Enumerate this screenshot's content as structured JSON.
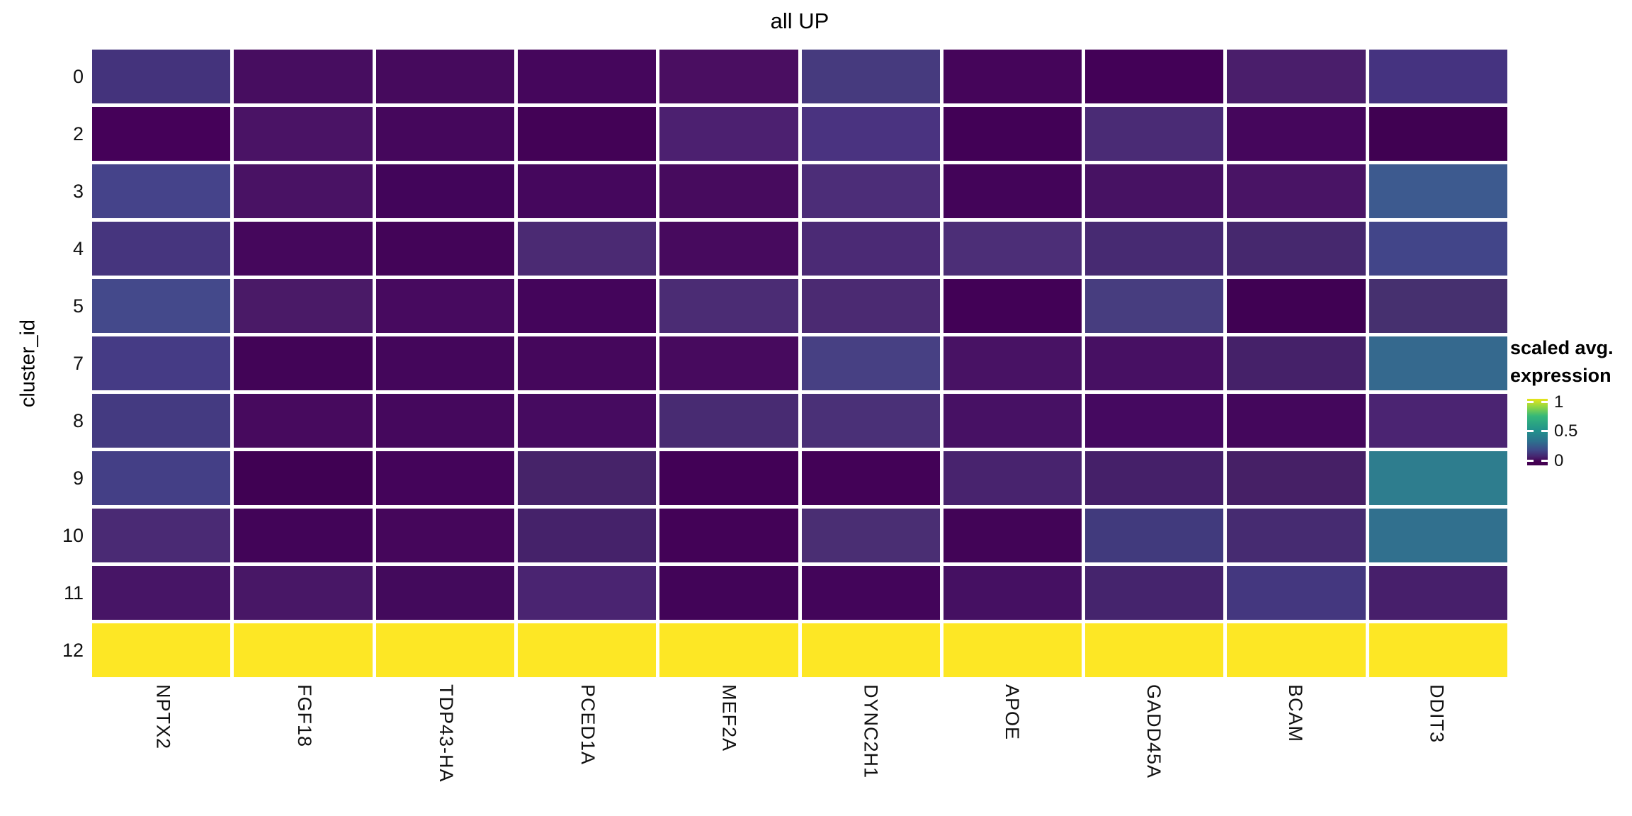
{
  "title": "all UP",
  "y_axis": {
    "title": "cluster_id",
    "tick_labels": [
      "0",
      "2",
      "3",
      "4",
      "5",
      "7",
      "8",
      "9",
      "10",
      "11",
      "12"
    ]
  },
  "x_axis": {
    "tick_labels": [
      "NPTX2",
      "FGF18",
      "TDP43-HA",
      "PCED1A",
      "MEF2A",
      "DYNC2H1",
      "APOE",
      "GADD45A",
      "BCAM",
      "DDIT3"
    ]
  },
  "legend": {
    "title_line1": "scaled avg.",
    "title_line2": "expression",
    "tick_labels": [
      "1",
      "0.5",
      "0"
    ],
    "colormap": "viridis",
    "top_color": "#e8e419",
    "mid_color": "#21918c",
    "bottom_color": "#440154"
  },
  "chart_data": {
    "type": "heatmap",
    "title": "all UP",
    "xlabel": "",
    "ylabel": "cluster_id",
    "columns": [
      "NPTX2",
      "FGF18",
      "TDP43-HA",
      "PCED1A",
      "MEF2A",
      "DYNC2H1",
      "APOE",
      "GADD45A",
      "BCAM",
      "DDIT3"
    ],
    "rows": [
      0,
      2,
      3,
      4,
      5,
      7,
      8,
      9,
      10,
      11,
      12
    ],
    "legend_title": "scaled avg. expression",
    "color_scale": {
      "name": "viridis",
      "domain": [
        0,
        1
      ],
      "legend_ticks": [
        1,
        0.5,
        0
      ]
    },
    "values": [
      [
        0.15,
        0.04,
        0.03,
        0.02,
        0.04,
        0.17,
        0.02,
        0.01,
        0.09,
        0.16
      ],
      [
        0.01,
        0.07,
        0.02,
        0.01,
        0.1,
        0.15,
        0.0,
        0.13,
        0.02,
        0.0
      ],
      [
        0.2,
        0.06,
        0.02,
        0.03,
        0.04,
        0.13,
        0.02,
        0.06,
        0.07,
        0.27
      ],
      [
        0.16,
        0.02,
        0.01,
        0.12,
        0.03,
        0.12,
        0.14,
        0.12,
        0.11,
        0.2
      ],
      [
        0.21,
        0.08,
        0.03,
        0.02,
        0.13,
        0.12,
        0.0,
        0.18,
        0.0,
        0.14
      ],
      [
        0.18,
        0.01,
        0.02,
        0.03,
        0.03,
        0.19,
        0.06,
        0.05,
        0.1,
        0.32
      ],
      [
        0.17,
        0.03,
        0.03,
        0.04,
        0.12,
        0.14,
        0.06,
        0.04,
        0.03,
        0.11
      ],
      [
        0.19,
        0.0,
        0.01,
        0.1,
        0.0,
        0.01,
        0.1,
        0.09,
        0.09,
        0.42
      ],
      [
        0.12,
        0.01,
        0.02,
        0.1,
        0.01,
        0.13,
        0.01,
        0.17,
        0.12,
        0.37
      ],
      [
        0.07,
        0.08,
        0.04,
        0.11,
        0.01,
        0.02,
        0.06,
        0.11,
        0.16,
        0.09
      ],
      [
        1.0,
        1.0,
        1.0,
        1.0,
        1.0,
        1.0,
        1.0,
        1.0,
        1.0,
        1.0
      ]
    ],
    "cell_colors": [
      [
        "#44337c",
        "#470d60",
        "#460a5d",
        "#45065c",
        "#4a0e61",
        "#463a7e",
        "#45055a",
        "#430157",
        "#4a1e6b",
        "#453380"
      ],
      [
        "#450159",
        "#4a1365",
        "#45075c",
        "#430256",
        "#4c2070",
        "#4a3380",
        "#420156",
        "#4a2b75",
        "#45065c",
        "#400152"
      ],
      [
        "#45438a",
        "#491264",
        "#42055a",
        "#45075d",
        "#470b5e",
        "#4c2d78",
        "#430459",
        "#471263",
        "#491465",
        "#3d5a8f"
      ],
      [
        "#46357e",
        "#45075c",
        "#430458",
        "#4b2a73",
        "#470a5e",
        "#4b2a75",
        "#4c2e77",
        "#472a72",
        "#46286e",
        "#424589"
      ],
      [
        "#44498b",
        "#4a1a67",
        "#470a5f",
        "#44055b",
        "#4b2c74",
        "#4b2a72",
        "#420156",
        "#473d7f",
        "#400153",
        "#46306f"
      ],
      [
        "#453b85",
        "#420457",
        "#44065b",
        "#45075c",
        "#470a5e",
        "#474083",
        "#481264",
        "#471063",
        "#452169",
        "#35698e"
      ],
      [
        "#443a81",
        "#470a5e",
        "#45085d",
        "#460b60",
        "#482b72",
        "#4a3077",
        "#471164",
        "#450960",
        "#44075c",
        "#4b2472"
      ],
      [
        "#443f86",
        "#400153",
        "#44045a",
        "#462369",
        "#420156",
        "#430257",
        "#48236e",
        "#452069",
        "#462066",
        "#2e7d8e"
      ],
      [
        "#4a2a74",
        "#420458",
        "#45065b",
        "#45226a",
        "#430257",
        "#4a2e73",
        "#420457",
        "#413a7d",
        "#462b71",
        "#31708e"
      ],
      [
        "#471566",
        "#481766",
        "#430a5c",
        "#4a2471",
        "#420458",
        "#43055a",
        "#451062",
        "#45246d",
        "#44377f",
        "#471f6b"
      ],
      [
        "#fde725",
        "#fde725",
        "#fde725",
        "#fde725",
        "#fde725",
        "#fde725",
        "#fde725",
        "#fde725",
        "#fde725",
        "#fde725"
      ]
    ]
  }
}
